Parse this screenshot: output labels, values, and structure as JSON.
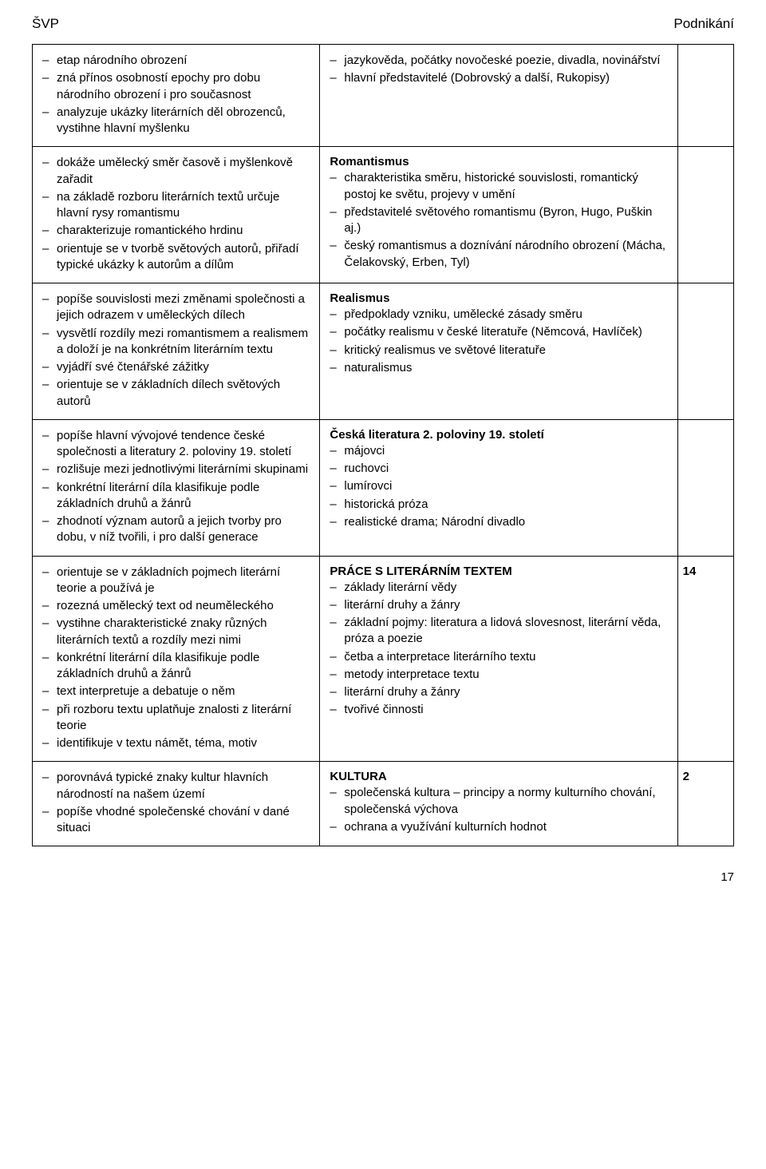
{
  "header": {
    "left": "ŠVP",
    "right": "Podnikání"
  },
  "rows": [
    {
      "left_items": [
        "etap národního obrození",
        "zná přínos osobností epochy pro dobu národního obrození i pro současnost",
        "analyzuje ukázky literárních děl obrozenců, vystihne hlavní myšlenku"
      ],
      "mid_title": "",
      "mid_items": [
        "jazykověda, počátky novočeské poezie, divadla, novinářství",
        "hlavní představitelé (Dobrovský a další, Rukopisy)"
      ],
      "right": ""
    },
    {
      "left_items": [
        "dokáže umělecký směr časově i myšlenkově zařadit",
        "na základě rozboru literárních textů určuje hlavní rysy romantismu",
        "charakterizuje romantického hrdinu",
        "orientuje se v tvorbě světových autorů, přiřadí typické ukázky k autorům a dílům"
      ],
      "mid_title": "Romantismus",
      "mid_items": [
        "charakteristika směru, historické souvislosti, romantický postoj ke světu, projevy v umění",
        "představitelé světového romantismu (Byron, Hugo, Puškin aj.)",
        "český romantismus a doznívání národního obrození (Mácha, Čelakovský, Erben, Tyl)"
      ],
      "right": ""
    },
    {
      "left_items": [
        "popíše souvislosti mezi změnami společnosti a jejich odrazem v uměleckých dílech",
        "vysvětlí rozdíly mezi romantismem a realismem a doloží je na konkrétním literárním textu",
        "vyjádří své čtenářské zážitky",
        "orientuje se v základních dílech světových autorů"
      ],
      "mid_title": "Realismus",
      "mid_items": [
        "předpoklady vzniku, umělecké zásady směru",
        "počátky realismu v české literatuře (Němcová, Havlíček)",
        "kritický realismus ve světové literatuře",
        "naturalismus"
      ],
      "right": ""
    },
    {
      "left_items": [
        "popíše hlavní vývojové tendence české společnosti a literatury 2. poloviny 19. století",
        "rozlišuje mezi jednotlivými literárními skupinami",
        "konkrétní literární díla klasifikuje podle základních druhů a žánrů",
        "zhodnotí význam autorů a jejich tvorby pro dobu, v níž tvořili, i pro další generace"
      ],
      "mid_title": "Česká literatura 2. poloviny 19. století",
      "mid_items": [
        "májovci",
        "ruchovci",
        "lumírovci",
        "historická próza",
        "realistické drama; Národní divadlo"
      ],
      "right": ""
    },
    {
      "left_items": [
        "orientuje se v základních pojmech literární teorie a používá je",
        "rozezná umělecký text od neuměleckého",
        "vystihne charakteristické znaky různých literárních textů a rozdíly mezi nimi",
        "konkrétní literární díla klasifikuje podle základních druhů a žánrů",
        "text interpretuje a debatuje o něm",
        "při rozboru textu uplatňuje znalosti z literární teorie",
        "identifikuje v textu námět, téma, motiv"
      ],
      "mid_title": "PRÁCE S LITERÁRNÍM TEXTEM",
      "mid_items": [
        "základy literární vědy",
        "literární druhy a žánry",
        "základní pojmy: literatura a lidová slovesnost, literární věda, próza a poezie",
        "četba a interpretace literárního textu",
        "metody interpretace textu",
        "literární druhy a žánry",
        "tvořivé činnosti"
      ],
      "right": "14"
    },
    {
      "left_items": [
        "porovnává typické znaky kultur hlavních národností na našem území",
        "popíše vhodné společenské chování v dané situaci"
      ],
      "mid_title": "KULTURA",
      "mid_items": [
        "společenská kultura – principy a normy kulturního chování, společenská výchova",
        "ochrana a využívání kulturních hodnot"
      ],
      "right": "2"
    }
  ],
  "page_number": "17"
}
